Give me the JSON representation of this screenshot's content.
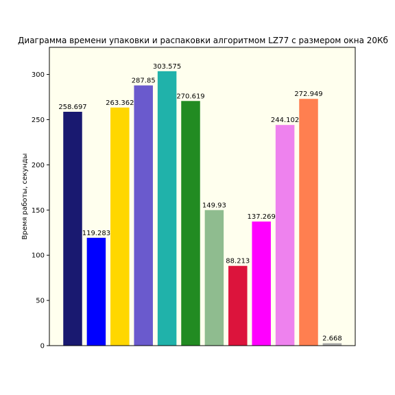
{
  "chart_data": {
    "type": "bar",
    "title": "Диаграмма времени упаковки и распаковки алгоритмом LZ77 с размером окна 20Кб",
    "xlabel": "",
    "ylabel": "Время работы, секунды",
    "ylim": [
      0,
      330
    ],
    "yticks": [
      0,
      50,
      100,
      150,
      200,
      250,
      300
    ],
    "grid": false,
    "background_color": "#ffffee",
    "values": [
      258.697,
      119.283,
      263.362,
      287.85,
      303.575,
      270.619,
      149.93,
      88.213,
      137.269,
      244.102,
      272.949,
      2.668
    ],
    "value_labels": [
      "258.697",
      "119.283",
      "263.362",
      "287.85",
      "303.575",
      "270.619",
      "149.93",
      "88.213",
      "137.269",
      "244.102",
      "272.949",
      "2.668"
    ],
    "colors": [
      "#191970",
      "#0000ff",
      "#ffd700",
      "#6a5acd",
      "#20b2aa",
      "#228b22",
      "#8fbc8f",
      "#dc143c",
      "#ff00ff",
      "#ee82ee",
      "#ff7f50",
      "#a9a9a9"
    ]
  }
}
